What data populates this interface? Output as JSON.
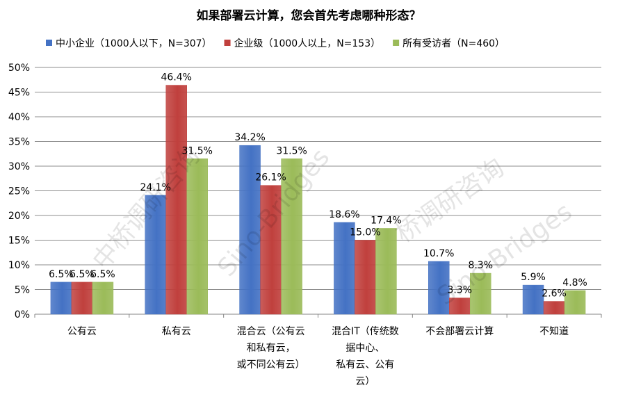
{
  "chart_data": {
    "type": "bar",
    "title": "如果部署云计算，您会首先考虑哪种形态？",
    "xlabel": "",
    "ylabel": "",
    "ylim": [
      0,
      50
    ],
    "yticks": [
      "0%",
      "5%",
      "10%",
      "15%",
      "20%",
      "25%",
      "30%",
      "35%",
      "40%",
      "45%",
      "50%"
    ],
    "grid": true,
    "legend_position": "top",
    "categories": [
      [
        "公有云"
      ],
      [
        "私有云"
      ],
      [
        "混合云（公有云",
        "和私有云，",
        "或不同公有云）"
      ],
      [
        "混合IT（传统数",
        "据中心、",
        "私有云、公有",
        "云）"
      ],
      [
        "不会部署云计算"
      ],
      [
        "不知道"
      ]
    ],
    "series": [
      {
        "name": "中小企业（1000人以下，N=307）",
        "color": "#4472C4",
        "values": [
          6.5,
          24.1,
          34.2,
          18.6,
          10.7,
          5.9
        ],
        "labels": [
          "6.5%",
          "24.1%",
          "34.2%",
          "18.6%",
          "10.7%",
          "5.9%"
        ]
      },
      {
        "name": "企业级（1000人以上，N=153）",
        "color": "#C0403D",
        "values": [
          6.5,
          46.4,
          26.1,
          15.0,
          3.3,
          2.6
        ],
        "labels": [
          "6.5%",
          "46.4%",
          "26.1%",
          "15.0%",
          "3.3%",
          "2.6%"
        ]
      },
      {
        "name": "所有受访者（N=460）",
        "color": "#9BBB59",
        "values": [
          6.5,
          31.5,
          31.5,
          17.4,
          8.3,
          4.8
        ],
        "labels": [
          "6.5%",
          "31.5%",
          "31.5%",
          "17.4%",
          "8.3%",
          "4.8%"
        ]
      }
    ]
  },
  "watermark": [
    "中桥调研咨询",
    "Sino-Bridges",
    "桥调研咨询",
    "Sino-Bridges"
  ]
}
